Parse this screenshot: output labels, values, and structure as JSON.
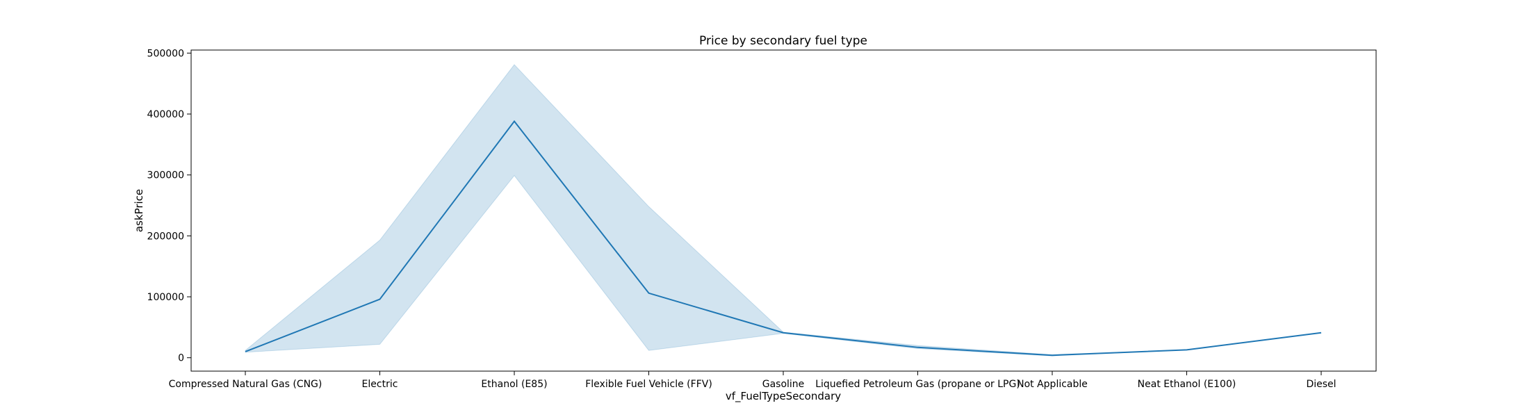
{
  "chart_data": {
    "type": "line",
    "title": "Price by secondary fuel type",
    "xlabel": "vf_FuelTypeSecondary",
    "ylabel": "askPrice",
    "categories": [
      "Compressed Natural Gas (CNG)",
      "Electric",
      "Ethanol (E85)",
      "Flexible Fuel Vehicle (FFV)",
      "Gasoline",
      "Liquefied Petroleum Gas (propane or LPG)",
      "Not Applicable",
      "Neat Ethanol (E100)",
      "Diesel"
    ],
    "yticks": [
      0,
      100000,
      200000,
      300000,
      400000,
      500000
    ],
    "ylim": [
      -22000,
      505000
    ],
    "grid": false,
    "series": [
      {
        "values": [
          10000,
          96000,
          388000,
          106000,
          41000,
          17000,
          4000,
          13000,
          41000
        ],
        "ci_lower": [
          9000,
          22000,
          299000,
          12000,
          40000,
          15000,
          3000,
          13000,
          41000
        ],
        "ci_upper": [
          12000,
          193000,
          481000,
          248000,
          42000,
          20000,
          5000,
          13000,
          41000
        ],
        "color": "#1f77b4",
        "band_color": "#1f77b4"
      }
    ]
  }
}
